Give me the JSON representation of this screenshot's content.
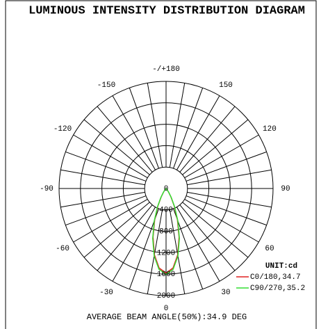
{
  "chart_data": {
    "type": "polar",
    "title": "LUMINOUS INTENSITY DISTRIBUTION DIAGRAM",
    "footer": "AVERAGE BEAM ANGLE(50%):34.9 DEG",
    "unit_label": "UNIT:cd",
    "rlim": [
      0,
      2000
    ],
    "rticks": [
      0,
      400,
      800,
      1200,
      1600,
      2000
    ],
    "angle_ticks": [
      0,
      30,
      60,
      90,
      120,
      150,
      {
        "value": 180,
        "label": "-/+180"
      },
      -150,
      -120,
      -90,
      -60,
      -30
    ],
    "angles": [
      -50,
      -45,
      -40,
      -35,
      -30,
      -25,
      -20,
      -15,
      -10,
      -5,
      0,
      5,
      10,
      15,
      20,
      25,
      30,
      35,
      40,
      45,
      50
    ],
    "series": [
      {
        "name": "C0/180,34.7",
        "color": "#e02020",
        "values": [
          0,
          9,
          28,
          79,
          183,
          362,
          621,
          940,
          1256,
          1490,
          1580,
          1490,
          1256,
          940,
          621,
          362,
          183,
          79,
          28,
          9,
          0
        ]
      },
      {
        "name": "C90/270,35.2",
        "color": "#33dd33",
        "values": [
          0,
          10,
          31,
          86,
          196,
          380,
          645,
          965,
          1280,
          1515,
          1600,
          1515,
          1280,
          965,
          645,
          380,
          196,
          86,
          31,
          10,
          0
        ]
      }
    ]
  }
}
